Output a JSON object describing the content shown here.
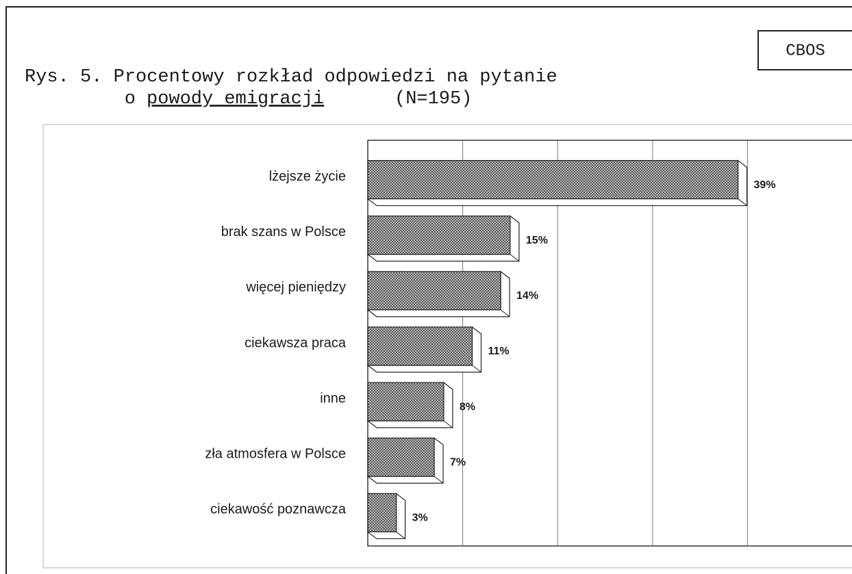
{
  "source": "CBOS",
  "chart_data": {
    "type": "hbar",
    "title": "Rys. 5. Procentowy rozkład odpowiedzi na pytanie",
    "title_line2_prefix": "o",
    "title_line2_underlined": "powody emigracji",
    "title_line2_suffix": "(N=195)",
    "categories": [
      "lżejsze życie",
      "brak szans w Polsce",
      "więcej pieniędzy",
      "ciekawsza praca",
      "inne",
      "zła atmosfera w Polsce",
      "ciekawość poznawcza"
    ],
    "values": [
      39,
      15,
      14,
      11,
      8,
      7,
      3
    ],
    "value_labels": [
      "39%",
      "15%",
      "14%",
      "11%",
      "8%",
      "7%",
      "3%"
    ],
    "color": "#8a8a8a",
    "xlim": [
      0,
      50
    ],
    "xticks": [
      10,
      20,
      30,
      40
    ],
    "grid": true
  }
}
